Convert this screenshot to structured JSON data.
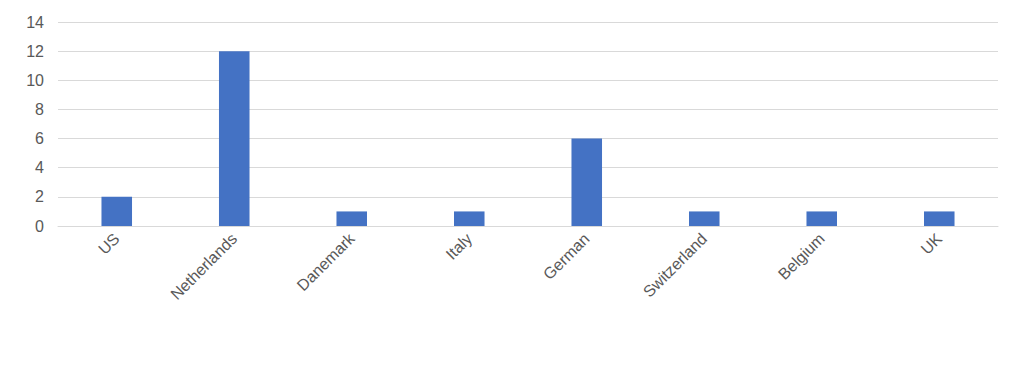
{
  "chart_data": {
    "type": "bar",
    "categories": [
      "US",
      "Netherlands",
      "Danemark",
      "Italy",
      "German",
      "Switzerland",
      "Belgium",
      "UK"
    ],
    "values": [
      2,
      12,
      1,
      1,
      6,
      1,
      1,
      1
    ],
    "color": "#4472c4",
    "ylim": [
      0,
      14
    ],
    "yticks": [
      0,
      2,
      4,
      6,
      8,
      10,
      12,
      14
    ],
    "grid": true
  }
}
